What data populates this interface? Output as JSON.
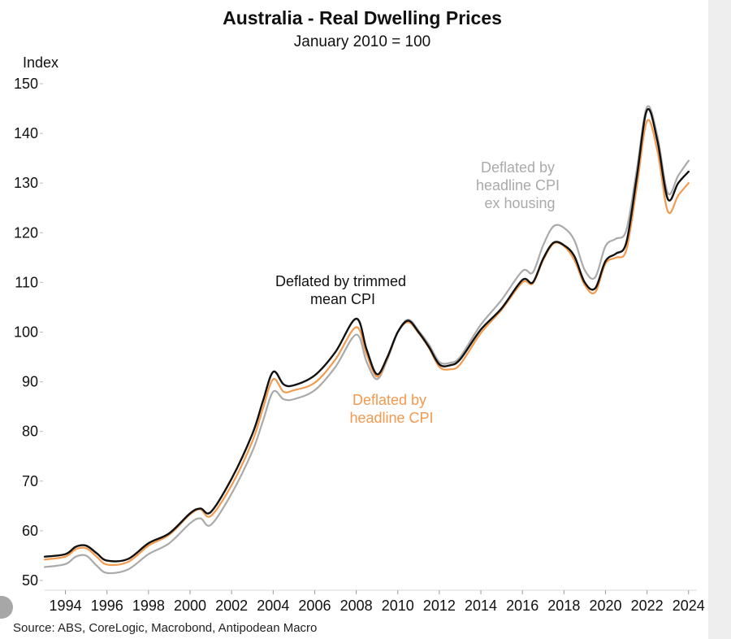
{
  "chart_data": {
    "type": "line",
    "title": "Australia - Real Dwelling Prices",
    "subtitle": "January 2010 = 100",
    "ylabel": "Index",
    "xlabel": "",
    "ylim": [
      50,
      150
    ],
    "xlim": [
      1993.0,
      2024.4
    ],
    "y_ticks": [
      50,
      60,
      70,
      80,
      90,
      100,
      110,
      120,
      130,
      140,
      150
    ],
    "x_ticks": [
      1994,
      1996,
      1998,
      2000,
      2002,
      2004,
      2006,
      2008,
      2010,
      2012,
      2014,
      2016,
      2018,
      2020,
      2022,
      2024
    ],
    "grid": false,
    "source": "Source: ABS, CoreLogic, Macrobond, Antipodean Macro",
    "series": [
      {
        "name": "Deflated by trimmed mean CPI",
        "color": "#111111",
        "points": [
          [
            1993.0,
            54.8
          ],
          [
            1994.0,
            55.3
          ],
          [
            1994.5,
            56.8
          ],
          [
            1995.0,
            57.0
          ],
          [
            1995.5,
            55.5
          ],
          [
            1996.0,
            54.0
          ],
          [
            1997.0,
            54.3
          ],
          [
            1998.0,
            57.5
          ],
          [
            1999.0,
            59.5
          ],
          [
            2000.0,
            63.5
          ],
          [
            2000.5,
            64.5
          ],
          [
            2001.0,
            63.8
          ],
          [
            2002.0,
            70.5
          ],
          [
            2003.0,
            79.5
          ],
          [
            2003.5,
            86.0
          ],
          [
            2004.0,
            92.0
          ],
          [
            2004.5,
            89.5
          ],
          [
            2005.0,
            89.3
          ],
          [
            2006.0,
            91.3
          ],
          [
            2007.0,
            96.0
          ],
          [
            2008.0,
            102.7
          ],
          [
            2008.5,
            96.5
          ],
          [
            2009.0,
            91.5
          ],
          [
            2009.5,
            95.0
          ],
          [
            2010.0,
            100.0
          ],
          [
            2010.5,
            102.3
          ],
          [
            2011.0,
            100.0
          ],
          [
            2011.5,
            97.0
          ],
          [
            2012.0,
            93.5
          ],
          [
            2012.5,
            93.3
          ],
          [
            2013.0,
            94.5
          ],
          [
            2014.0,
            100.5
          ],
          [
            2015.0,
            104.8
          ],
          [
            2016.0,
            110.5
          ],
          [
            2016.5,
            110.0
          ],
          [
            2017.0,
            114.8
          ],
          [
            2017.5,
            118.0
          ],
          [
            2018.0,
            117.5
          ],
          [
            2018.5,
            115.3
          ],
          [
            2019.0,
            110.0
          ],
          [
            2019.5,
            108.8
          ],
          [
            2020.0,
            114.3
          ],
          [
            2020.5,
            115.8
          ],
          [
            2021.0,
            118.0
          ],
          [
            2021.5,
            131.0
          ],
          [
            2022.0,
            144.7
          ],
          [
            2022.5,
            138.5
          ],
          [
            2023.0,
            126.8
          ],
          [
            2023.5,
            130.0
          ],
          [
            2024.0,
            132.3
          ]
        ]
      },
      {
        "name": "Deflated by headline CPI",
        "color": "#f39a4e",
        "points": [
          [
            1993.0,
            54.2
          ],
          [
            1994.0,
            54.8
          ],
          [
            1994.5,
            56.3
          ],
          [
            1995.0,
            56.5
          ],
          [
            1995.5,
            54.8
          ],
          [
            1996.0,
            53.2
          ],
          [
            1997.0,
            53.7
          ],
          [
            1998.0,
            57.0
          ],
          [
            1999.0,
            59.2
          ],
          [
            2000.0,
            63.3
          ],
          [
            2000.5,
            64.3
          ],
          [
            2001.0,
            63.0
          ],
          [
            2002.0,
            69.2
          ],
          [
            2003.0,
            78.0
          ],
          [
            2003.5,
            84.5
          ],
          [
            2004.0,
            90.5
          ],
          [
            2004.5,
            88.0
          ],
          [
            2005.0,
            88.3
          ],
          [
            2006.0,
            89.8
          ],
          [
            2007.0,
            94.5
          ],
          [
            2008.0,
            101.0
          ],
          [
            2008.5,
            95.5
          ],
          [
            2009.0,
            91.0
          ],
          [
            2009.5,
            94.8
          ],
          [
            2010.0,
            100.0
          ],
          [
            2010.5,
            102.0
          ],
          [
            2011.0,
            99.8
          ],
          [
            2011.5,
            96.8
          ],
          [
            2012.0,
            93.0
          ],
          [
            2012.5,
            92.5
          ],
          [
            2013.0,
            93.5
          ],
          [
            2014.0,
            99.8
          ],
          [
            2015.0,
            104.5
          ],
          [
            2016.0,
            110.0
          ],
          [
            2016.5,
            109.8
          ],
          [
            2017.0,
            114.5
          ],
          [
            2017.5,
            117.8
          ],
          [
            2018.0,
            117.3
          ],
          [
            2018.5,
            114.5
          ],
          [
            2019.0,
            109.5
          ],
          [
            2019.5,
            108.0
          ],
          [
            2020.0,
            113.8
          ],
          [
            2020.5,
            115.0
          ],
          [
            2021.0,
            116.5
          ],
          [
            2021.5,
            129.0
          ],
          [
            2022.0,
            142.5
          ],
          [
            2022.5,
            136.5
          ],
          [
            2023.0,
            124.3
          ],
          [
            2023.5,
            127.5
          ],
          [
            2024.0,
            130.0
          ]
        ]
      },
      {
        "name": "Deflated by headline CPI ex housing",
        "color": "#aaaaaa",
        "points": [
          [
            1993.0,
            52.7
          ],
          [
            1994.0,
            53.3
          ],
          [
            1994.5,
            54.8
          ],
          [
            1995.0,
            55.0
          ],
          [
            1995.5,
            53.0
          ],
          [
            1996.0,
            51.5
          ],
          [
            1997.0,
            52.2
          ],
          [
            1998.0,
            55.3
          ],
          [
            1999.0,
            57.5
          ],
          [
            2000.0,
            61.5
          ],
          [
            2000.5,
            62.5
          ],
          [
            2001.0,
            61.2
          ],
          [
            2002.0,
            67.5
          ],
          [
            2003.0,
            76.0
          ],
          [
            2003.5,
            82.0
          ],
          [
            2004.0,
            88.0
          ],
          [
            2004.5,
            86.5
          ],
          [
            2005.0,
            86.5
          ],
          [
            2006.0,
            88.3
          ],
          [
            2007.0,
            93.0
          ],
          [
            2008.0,
            99.5
          ],
          [
            2008.5,
            94.0
          ],
          [
            2009.0,
            90.5
          ],
          [
            2009.5,
            94.5
          ],
          [
            2010.0,
            100.0
          ],
          [
            2010.5,
            102.5
          ],
          [
            2011.0,
            100.3
          ],
          [
            2011.5,
            97.5
          ],
          [
            2012.0,
            94.0
          ],
          [
            2012.5,
            93.8
          ],
          [
            2013.0,
            95.0
          ],
          [
            2014.0,
            101.5
          ],
          [
            2015.0,
            106.5
          ],
          [
            2016.0,
            112.3
          ],
          [
            2016.5,
            112.0
          ],
          [
            2017.0,
            117.5
          ],
          [
            2017.5,
            121.3
          ],
          [
            2018.0,
            121.0
          ],
          [
            2018.5,
            118.5
          ],
          [
            2019.0,
            112.5
          ],
          [
            2019.5,
            111.0
          ],
          [
            2020.0,
            117.3
          ],
          [
            2020.5,
            118.8
          ],
          [
            2021.0,
            120.5
          ],
          [
            2021.5,
            132.5
          ],
          [
            2022.0,
            145.3
          ],
          [
            2022.5,
            139.5
          ],
          [
            2023.0,
            128.0
          ],
          [
            2023.5,
            131.5
          ],
          [
            2024.0,
            134.5
          ]
        ]
      }
    ],
    "annotations": [
      {
        "lines": [
          "Deflated by",
          "headline CPI",
          "ex housing"
        ],
        "color": "#aaaaaa",
        "series": "Deflated by headline CPI ex housing"
      },
      {
        "lines": [
          "Deflated by trimmed",
          "mean CPI"
        ],
        "color": "#111111",
        "series": "Deflated by trimmed mean CPI"
      },
      {
        "lines": [
          "Deflated by",
          "headline CPI"
        ],
        "color": "#f39a4e",
        "series": "Deflated by headline CPI"
      }
    ]
  }
}
